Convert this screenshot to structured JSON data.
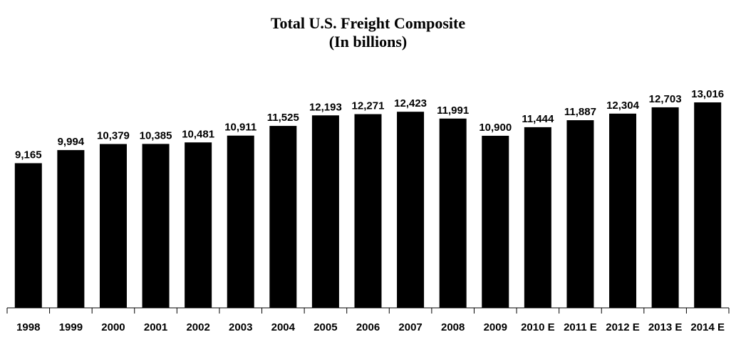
{
  "chart_data": {
    "type": "bar",
    "title": "Total U.S. Freight Composite",
    "subtitle": "(In billions)",
    "xlabel": "",
    "ylabel": "",
    "categories": [
      "1998",
      "1999",
      "2000",
      "2001",
      "2002",
      "2003",
      "2004",
      "2005",
      "2006",
      "2007",
      "2008",
      "2009",
      "2010 E",
      "2011 E",
      "2012 E",
      "2013 E",
      "2014 E"
    ],
    "values": [
      9165,
      9994,
      10379,
      10385,
      10481,
      10911,
      11525,
      12193,
      12271,
      12423,
      11991,
      10900,
      11444,
      11887,
      12304,
      12703,
      13016
    ],
    "value_labels": [
      "9,165",
      "9,994",
      "10,379",
      "10,385",
      "10,481",
      "10,911",
      "11,525",
      "12,193",
      "12,271",
      "12,423",
      "11,991",
      "10,900",
      "11,444",
      "11,887",
      "12,304",
      "12,703",
      "13,016"
    ],
    "ylim": [
      0,
      13016
    ],
    "grid": false,
    "legend": "none",
    "colors": {
      "bar": "#000000",
      "axis": "#000000",
      "text": "#000000",
      "background": "#ffffff"
    }
  }
}
